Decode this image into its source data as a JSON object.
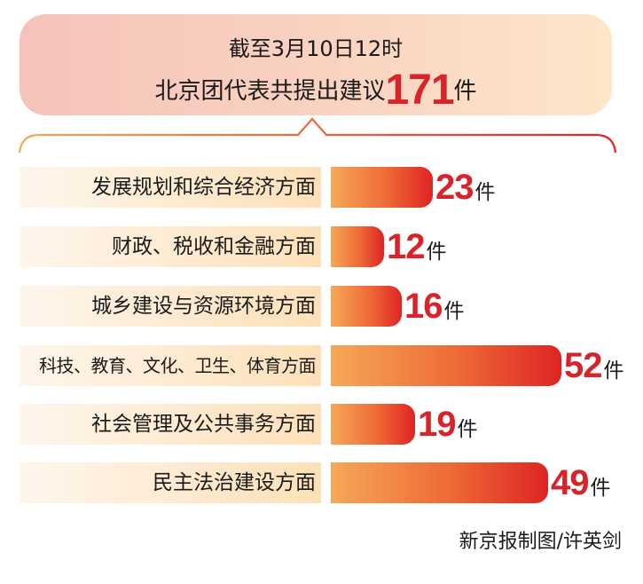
{
  "banner": {
    "line1": "截至3月10日12时",
    "line2_prefix": "北京团代表共提出建议",
    "total": "171",
    "unit": "件"
  },
  "chart_data": {
    "type": "bar",
    "orientation": "horizontal",
    "categories": [
      "发展规划和综合经济方面",
      "财政、税收和金融方面",
      "城乡建设与资源环境方面",
      "科技、教育、文化、卫生、体育方面",
      "社会管理及公共事务方面",
      "民主法治建设方面"
    ],
    "values": [
      23,
      12,
      16,
      52,
      19,
      49
    ],
    "value_unit": "件",
    "colors": {
      "bar_start": "#f5a858",
      "bar_end": "#de2424",
      "value_text": "#d8232a"
    }
  },
  "credit": "新京报制图/许英剑"
}
